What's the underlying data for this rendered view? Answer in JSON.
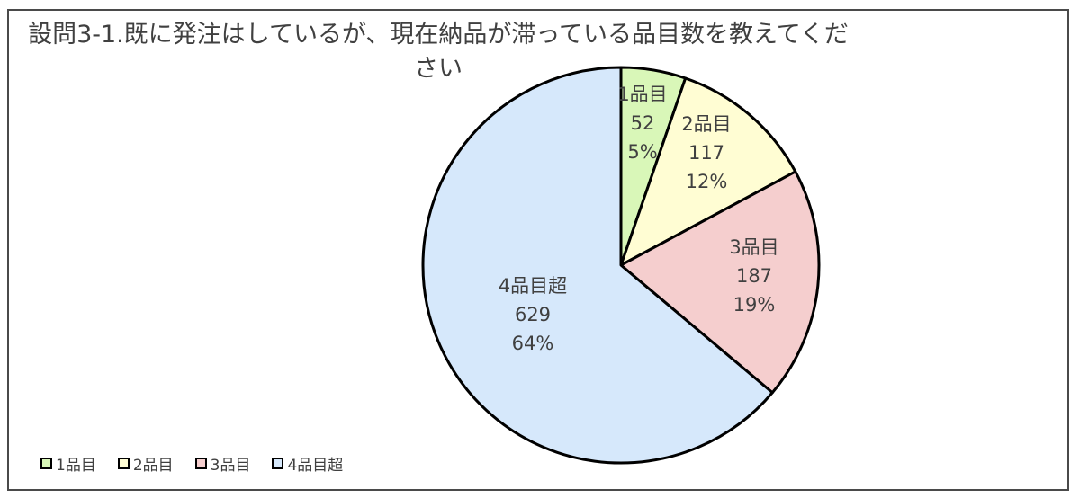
{
  "chart_data": {
    "type": "pie",
    "title": "設問3-1.既に発注はしているが、現在納品が滞っている品目数を教えてください",
    "categories": [
      "1品目",
      "2品目",
      "3品目",
      "4品目超"
    ],
    "values": [
      52,
      117,
      187,
      629
    ],
    "percent_labels": [
      "5%",
      "12%",
      "19%",
      "64%"
    ],
    "colors": [
      "#d9f7b8",
      "#fffdd3",
      "#f5cece",
      "#d6e8fb"
    ],
    "legend_position": "bottom-left"
  }
}
